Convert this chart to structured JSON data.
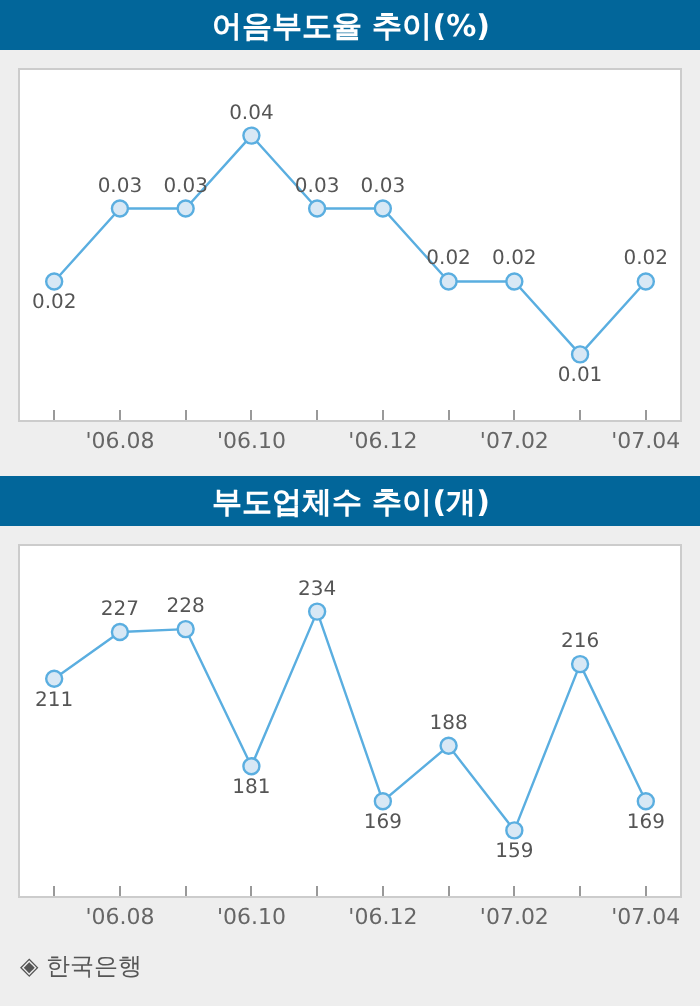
{
  "chart_data": [
    {
      "type": "line",
      "title": "어음부도율 추이(%)",
      "categories": [
        null,
        "'06.08",
        null,
        "'06.10",
        null,
        "'06.12",
        null,
        "'07.02",
        null,
        "'07.04"
      ],
      "series": [
        {
          "color": "#5aaee0",
          "values": [
            0.02,
            0.03,
            0.03,
            0.04,
            0.03,
            0.03,
            0.02,
            0.02,
            0.01,
            0.02
          ]
        }
      ],
      "data_labels": true,
      "marker": "circle",
      "tick_labels": "x"
    },
    {
      "type": "line",
      "title": "부도업체수 추이(개)",
      "categories": [
        null,
        "'06.08",
        null,
        "'06.10",
        null,
        "'06.12",
        null,
        "'07.02",
        null,
        "'07.04"
      ],
      "series": [
        {
          "color": "#5aaee0",
          "values": [
            211,
            227,
            228,
            181,
            234,
            169,
            188,
            159,
            216,
            169
          ]
        }
      ],
      "data_labels": true,
      "marker": "circle",
      "tick_labels": "x",
      "annotations": [
        "◈ 한국은행"
      ]
    }
  ]
}
